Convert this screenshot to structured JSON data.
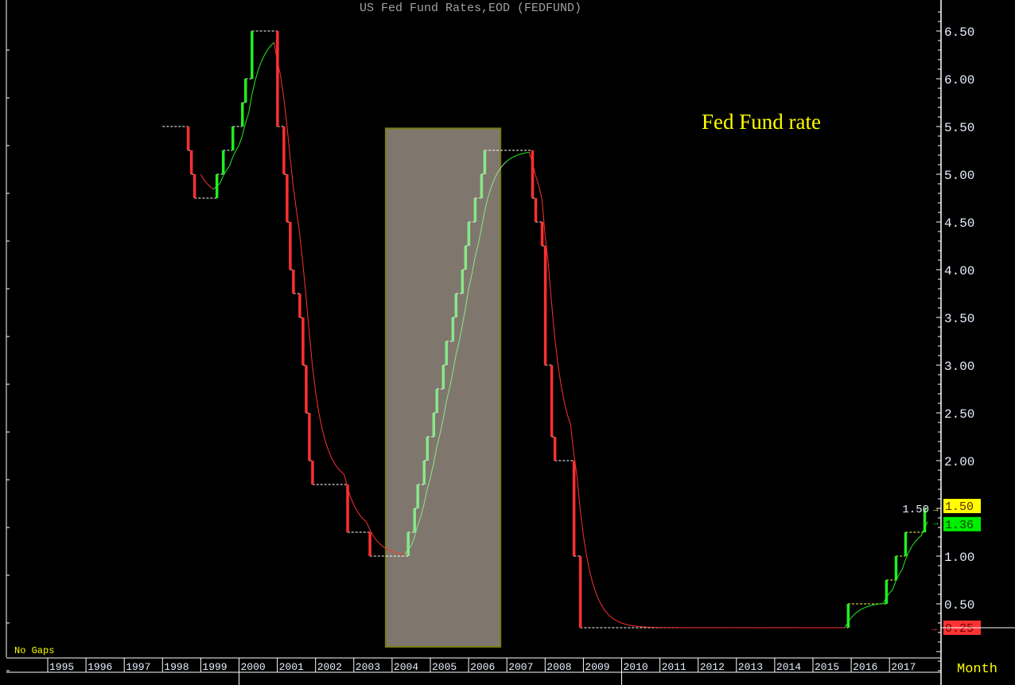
{
  "chart_data": {
    "type": "line",
    "title": "US Fed Fund Rates,EOD (FEDFUND)",
    "annotation": "Fed Fund rate",
    "footer_left": "No Gaps",
    "period_label": "Month",
    "x_ticks": [
      "1995",
      "1996",
      "1997",
      "1998",
      "1999",
      "2000",
      "2001",
      "2002",
      "2003",
      "2004",
      "2005",
      "2006",
      "2007",
      "2008",
      "2009",
      "2010",
      "2011",
      "2012",
      "2013",
      "2014",
      "2015",
      "2016",
      "2017"
    ],
    "y_ticks": [
      "0.50",
      "1.00",
      "1.50",
      "2.00",
      "2.50",
      "3.00",
      "3.50",
      "4.00",
      "4.50",
      "5.00",
      "5.50",
      "6.00",
      "6.50"
    ],
    "ylim": [
      -0.2,
      6.75
    ],
    "xlim": [
      "1995-01",
      "2018-02"
    ],
    "y_axis_position": "right",
    "grid": false,
    "highlight_region": {
      "x": [
        "2003-11",
        "2006-11"
      ],
      "y_top": 5.48,
      "color": "#7f776d",
      "border": "#7a7a14"
    },
    "colors": {
      "up": "#22ee22",
      "up_highlight": "#88e888",
      "down": "#ff3030",
      "flat": "#ffffff",
      "title": "#a0a0a0",
      "annotation": "#ffff00"
    },
    "series": [
      {
        "type": "step",
        "events": [
          [
            "1998-01",
            5.5
          ],
          [
            "1998-09",
            5.25
          ],
          [
            "1998-10",
            5.0
          ],
          [
            "1998-11",
            4.75
          ],
          [
            "1999-06",
            5.0
          ],
          [
            "1999-08",
            5.25
          ],
          [
            "1999-11",
            5.5
          ],
          [
            "2000-02",
            5.75
          ],
          [
            "2000-03",
            6.0
          ],
          [
            "2000-05",
            6.5
          ],
          [
            "2001-01",
            5.5
          ],
          [
            "2001-03",
            5.0
          ],
          [
            "2001-04",
            4.5
          ],
          [
            "2001-05",
            4.0
          ],
          [
            "2001-06",
            3.75
          ],
          [
            "2001-08",
            3.5
          ],
          [
            "2001-09",
            3.0
          ],
          [
            "2001-10",
            2.5
          ],
          [
            "2001-11",
            2.0
          ],
          [
            "2001-12",
            1.75
          ],
          [
            "2002-11",
            1.25
          ],
          [
            "2003-06",
            1.0
          ],
          [
            "2004-06",
            1.25
          ],
          [
            "2004-08",
            1.5
          ],
          [
            "2004-09",
            1.75
          ],
          [
            "2004-11",
            2.0
          ],
          [
            "2004-12",
            2.25
          ],
          [
            "2005-02",
            2.5
          ],
          [
            "2005-03",
            2.75
          ],
          [
            "2005-05",
            3.0
          ],
          [
            "2005-06",
            3.25
          ],
          [
            "2005-08",
            3.5
          ],
          [
            "2005-09",
            3.75
          ],
          [
            "2005-11",
            4.0
          ],
          [
            "2005-12",
            4.25
          ],
          [
            "2006-01",
            4.5
          ],
          [
            "2006-03",
            4.75
          ],
          [
            "2006-05",
            5.0
          ],
          [
            "2006-06",
            5.25
          ],
          [
            "2007-09",
            4.75
          ],
          [
            "2007-10",
            4.5
          ],
          [
            "2007-12",
            4.25
          ],
          [
            "2008-01",
            3.0
          ],
          [
            "2008-03",
            2.25
          ],
          [
            "2008-04",
            2.0
          ],
          [
            "2008-10",
            1.0
          ],
          [
            "2008-12",
            0.25
          ],
          [
            "2015-12",
            0.5
          ],
          [
            "2016-12",
            0.75
          ],
          [
            "2017-03",
            1.0
          ],
          [
            "2017-06",
            1.25
          ],
          [
            "2017-12",
            1.5
          ]
        ],
        "last_value": "1.50",
        "last_value_color": "#ffff00"
      },
      {
        "type": "moving-average",
        "last_value": "1.36",
        "last_value_color": "#00ee00"
      }
    ],
    "marker_label": {
      "value": "0.25",
      "color": "#ff3333"
    }
  }
}
